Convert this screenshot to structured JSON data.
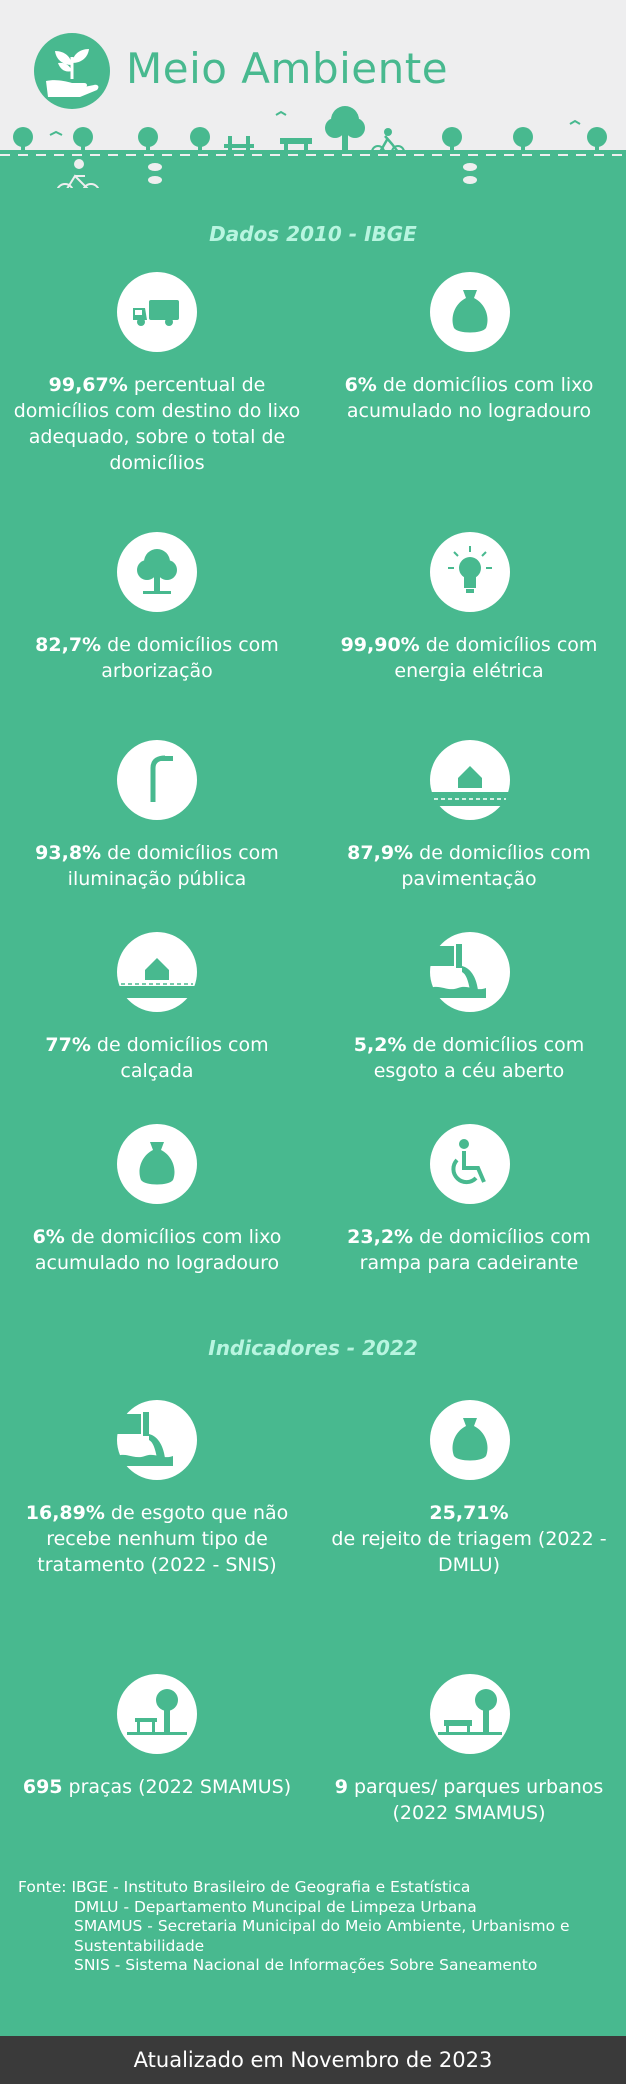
{
  "header": {
    "title": "Meio Ambiente"
  },
  "sections": {
    "dados": "Dados 2010 - IBGE",
    "indicadores": "Indicadores - 2022"
  },
  "items": [
    {
      "icon": "garbage-truck-icon",
      "value": "99,67%",
      "text": " percentual de domicílios com destino do lixo adequado, sobre o total de domicílios"
    },
    {
      "icon": "trash-bag-icon",
      "value": "6%",
      "text": " de domicílios com lixo acumulado no logradouro"
    },
    {
      "icon": "tree-icon",
      "value": "82,7%",
      "text": " de domicílios com arborização"
    },
    {
      "icon": "light-bulb-icon",
      "value": "99,90%",
      "text": " de domicílios com energia elétrica"
    },
    {
      "icon": "street-lamp-icon",
      "value": "93,8%",
      "text": " de domicílios com iluminação pública"
    },
    {
      "icon": "house-road-icon",
      "value": "87,9%",
      "text": " de domicílios com pavimentação"
    },
    {
      "icon": "house-sidewalk-icon",
      "value": "77%",
      "text": " de domicílios com calçada"
    },
    {
      "icon": "sewage-pipe-icon",
      "value": "5,2%",
      "text": " de domicílios com esgoto a céu aberto"
    },
    {
      "icon": "trash-bag-icon",
      "value": "6%",
      "text": " de domicílios com lixo acumulado no logradouro"
    },
    {
      "icon": "wheelchair-icon",
      "value": "23,2%",
      "text": " de domicílios com rampa para cadeirante"
    },
    {
      "icon": "sewage-pipe-icon",
      "value": "16,89%",
      "text": " de esgoto que não recebe nenhum tipo de tratamento (2022 - SNIS)"
    },
    {
      "icon": "trash-bag-icon",
      "value": "25,71%",
      "text": " de rejeito de triagem (2022 - DMLU)"
    },
    {
      "icon": "square-park-icon",
      "value": "695",
      "text": " praças (2022 SMAMUS)"
    },
    {
      "icon": "park-bench-icon",
      "value": "9",
      "text": " parques/ parques urbanos (2022 SMAMUS)"
    }
  ],
  "fonte": {
    "label": "Fonte:",
    "ibge": "IBGE - Instituto Brasileiro de Geografia e Estatística",
    "dmlu": "DMLU - Departamento Muncipal de Limpeza Urbana",
    "smamus": "SMAMUS - Secretaria Municipal do Meio Ambiente, Urbanismo e Sustentabilidade",
    "snis": "SNIS - Sistema Nacional de Informações Sobre Saneamento"
  },
  "footer": {
    "updated": "Atualizado em Novembro de 2023"
  },
  "colors": {
    "background": "#48b98f",
    "header": "#eeeeef",
    "section_title": "#b8f5e0",
    "footer": "#3a3a3a"
  }
}
